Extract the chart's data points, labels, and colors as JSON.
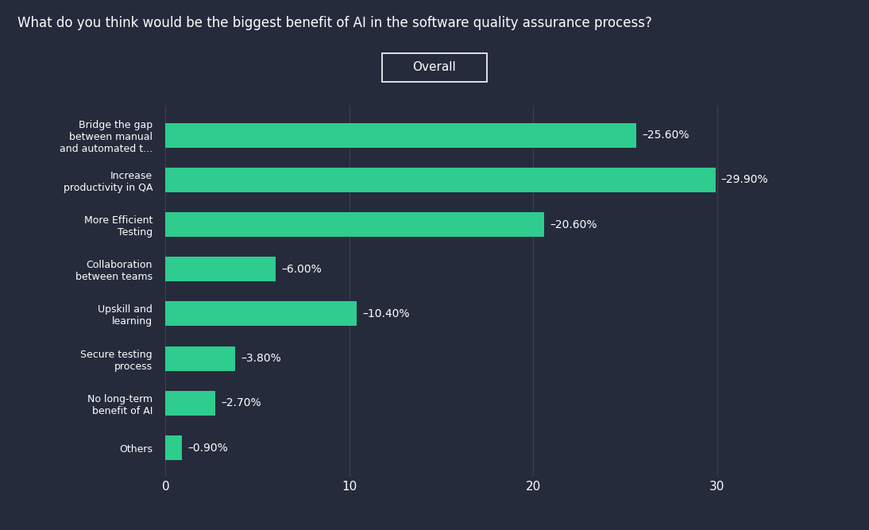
{
  "title": "What do you think would be the biggest benefit of AI in the software quality assurance process?",
  "legend_label": "Overall",
  "categories": [
    "Bridge the gap\nbetween manual\nand automated t...",
    "Increase\nproductivity in QA",
    "More Efficient\nTesting",
    "Collaboration\nbetween teams",
    "Upskill and\nlearning",
    "Secure testing\nprocess",
    "No long-term\nbenefit of AI",
    "Others"
  ],
  "values": [
    25.6,
    29.9,
    20.6,
    6.0,
    10.4,
    3.8,
    2.7,
    0.9
  ],
  "labels": [
    "25.60%",
    "29.90%",
    "20.60%",
    "6.00%",
    "10.40%",
    "3.80%",
    "2.70%",
    "0.90%"
  ],
  "bar_color": "#2ecc8e",
  "background_color": "#252b3b",
  "text_color": "#ffffff",
  "label_fontsize": 9,
  "title_fontsize": 12,
  "tick_fontsize": 11,
  "value_label_fontsize": 10,
  "xlim": [
    -0.5,
    34
  ],
  "xticks": [
    0,
    10,
    20,
    30
  ]
}
